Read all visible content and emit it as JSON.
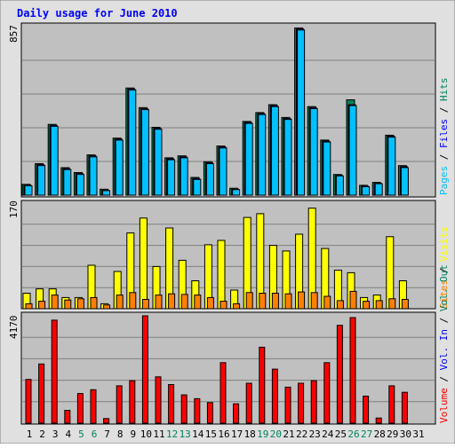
{
  "colors": {
    "background": "#C0C0C0",
    "frame_background": "#E0E0E0",
    "gridline": "#808080",
    "title": "#0000FF",
    "hits": "#00805C",
    "files": "#0000FF",
    "pages": "#00C0FF",
    "visits": "#FFFF00",
    "sites": "#FF8000",
    "kbytes": "#FF0000",
    "weekend_label": "#00805C",
    "weekday_label": "#000000"
  },
  "chart_data": {
    "type": "bar",
    "title": "Daily usage for June 2010",
    "days": [
      "1",
      "2",
      "3",
      "4",
      "5",
      "6",
      "7",
      "8",
      "9",
      "10",
      "11",
      "12",
      "13",
      "14",
      "15",
      "16",
      "17",
      "18",
      "19",
      "20",
      "21",
      "22",
      "23",
      "24",
      "25",
      "26",
      "27",
      "28",
      "29",
      "30",
      "31"
    ],
    "weekend_days": [
      "5",
      "6",
      "12",
      "13",
      "19",
      "20",
      "26",
      "27"
    ],
    "panels": [
      {
        "name": "hits-files-pages",
        "ymax_label": "857",
        "ymax": 857,
        "right_label": [
          "Hits",
          "Files",
          "Pages"
        ],
        "series": [
          {
            "name": "Hits",
            "values": [
              55,
              160,
              360,
              140,
              115,
              205,
              30,
              290,
              545,
              445,
              345,
              190,
              200,
              90,
              170,
              250,
              35,
              375,
              420,
              460,
              395,
              850,
              450,
              280,
              105,
              485,
              50,
              65,
              305,
              150,
              0
            ]
          },
          {
            "name": "Files",
            "values": [
              50,
              155,
              355,
              135,
              110,
              200,
              25,
              285,
              540,
              440,
              340,
              185,
              195,
              85,
              165,
              245,
              30,
              370,
              415,
              455,
              390,
              845,
              445,
              275,
              100,
              460,
              45,
              60,
              300,
              145,
              0
            ]
          },
          {
            "name": "Pages",
            "values": [
              48,
              150,
              350,
              130,
              105,
              195,
              23,
              280,
              535,
              435,
              335,
              180,
              190,
              80,
              160,
              240,
              28,
              365,
              410,
              450,
              385,
              840,
              440,
              270,
              98,
              455,
              43,
              58,
              295,
              140,
              0
            ]
          }
        ]
      },
      {
        "name": "visits-sites",
        "ymax_label": "170",
        "ymax": 170,
        "right_label": [
          "Visits",
          "Sites"
        ],
        "series": [
          {
            "name": "Visits",
            "values": [
              25,
              32,
              32,
              18,
              18,
              70,
              8,
              60,
              122,
              146,
              68,
              130,
              78,
              45,
              103,
              110,
              30,
              147,
              153,
              102,
              93,
              120,
              162,
              97,
              62,
              58,
              18,
              22,
              116,
              45,
              0
            ]
          },
          {
            "name": "Sites",
            "values": [
              8,
              12,
              22,
              14,
              16,
              18,
              6,
              22,
              26,
              15,
              22,
              24,
              23,
              22,
              18,
              12,
              8,
              26,
              25,
              25,
              24,
              27,
              26,
              20,
              13,
              28,
              12,
              13,
              16,
              15,
              0
            ]
          }
        ]
      },
      {
        "name": "kbytes",
        "ymax_label": "4170",
        "ymax": 4170,
        "right_label": [
          "Volume",
          "Vol. In",
          "Vol. Out"
        ],
        "series": [
          {
            "name": "Volume",
            "values": [
              1700,
              2300,
              4000,
              500,
              1150,
              1300,
              180,
              1450,
              1650,
              4170,
              1800,
              1500,
              1100,
              950,
              800,
              2350,
              750,
              1550,
              2950,
              2100,
              1400,
              1550,
              1650,
              2350,
              3800,
              4100,
              1050,
              200,
              1450,
              1200,
              0
            ]
          }
        ]
      }
    ]
  }
}
